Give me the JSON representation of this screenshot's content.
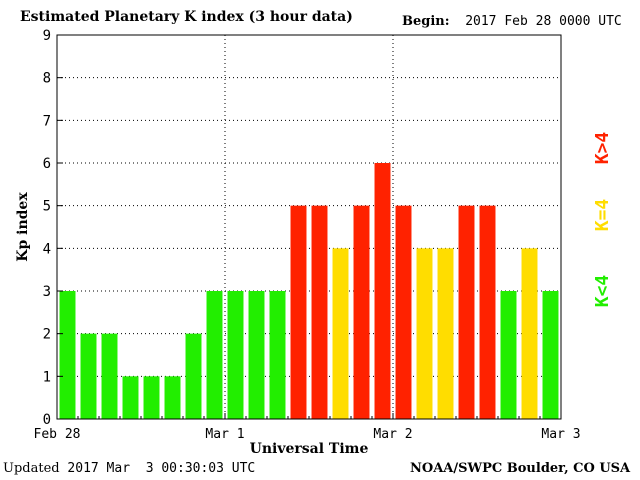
{
  "header": {
    "title": "Estimated Planetary K index (3 hour data)",
    "begin_label": "Begin:",
    "begin_value": "2017 Feb 28 0000 UTC"
  },
  "footer": {
    "updated_label": "Updated",
    "updated_value": "2017 Mar  3 00:30:03 UTC",
    "credit": "NOAA/SWPC Boulder, CO USA"
  },
  "legend": [
    {
      "label": "K>4",
      "color": "#ff2200"
    },
    {
      "label": "K=4",
      "color": "#ffdd00"
    },
    {
      "label": "K<4",
      "color": "#22ee00"
    }
  ],
  "chart_data": {
    "type": "bar",
    "title": "Estimated Planetary K index (3 hour data)",
    "xlabel": "Universal Time",
    "ylabel": "Kp index",
    "ylim": [
      0,
      9
    ],
    "yticks": [
      0,
      1,
      2,
      3,
      4,
      5,
      6,
      7,
      8,
      9
    ],
    "xticks": [
      "Feb 28",
      "Mar 1",
      "Mar 2",
      "Mar 3"
    ],
    "grid": true,
    "values": [
      3,
      2,
      2,
      1,
      1,
      1,
      2,
      3,
      3,
      3,
      3,
      5,
      5,
      4,
      5,
      6,
      5,
      4,
      4,
      5,
      5,
      3,
      4,
      3
    ],
    "colors": {
      "low": "#22ee00",
      "equal": "#ffdd00",
      "high": "#ff2200"
    }
  }
}
